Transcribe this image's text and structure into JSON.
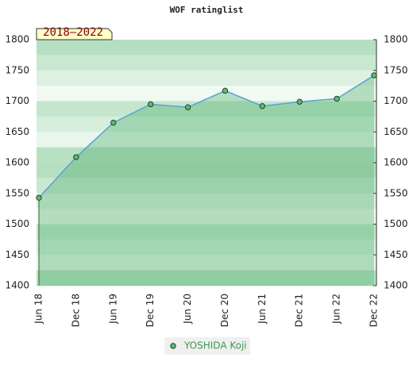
{
  "chart_data": {
    "type": "line",
    "title": "WOF ratinglist",
    "annotation": "2018–2022",
    "categories": [
      "Jun 18",
      "Dec 18",
      "Jun 19",
      "Dec 19",
      "Jun 20",
      "Dec 20",
      "Jun 21",
      "Dec 21",
      "Jun 22",
      "Dec 22"
    ],
    "series": [
      {
        "name": "YOSHIDA Koji",
        "color": "#5aa0d8",
        "marker_color": "#5fb878",
        "values": [
          1543,
          1609,
          1665,
          1695,
          1690,
          1717,
          1692,
          1699,
          1704,
          1742
        ]
      }
    ],
    "ylim": [
      1400,
      1800
    ],
    "yticks": [
      1400,
      1450,
      1500,
      1550,
      1600,
      1650,
      1700,
      1750,
      1800
    ],
    "area": true
  }
}
